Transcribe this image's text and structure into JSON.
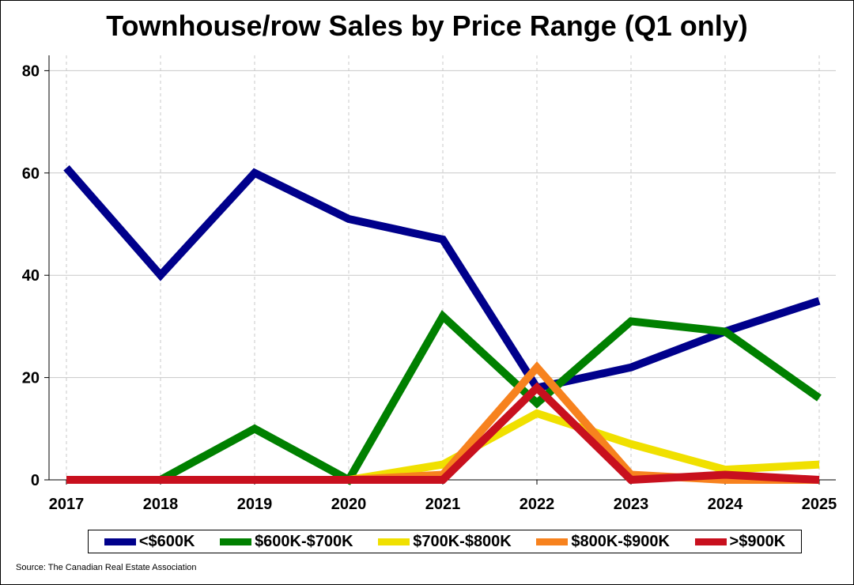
{
  "chart_data": {
    "type": "line",
    "title": "Townhouse/row Sales by Price Range (Q1 only)",
    "xlabel": "",
    "ylabel": "",
    "x": [
      "2017",
      "2018",
      "2019",
      "2020",
      "2021",
      "2022",
      "2023",
      "2024",
      "2025"
    ],
    "ylim": [
      0,
      83
    ],
    "yticks": [
      "0",
      "20",
      "40",
      "60",
      "80"
    ],
    "grid": true,
    "legend_position": "bottom",
    "series": [
      {
        "name": "<$600K",
        "color": "#00008B",
        "values": [
          61,
          40,
          60,
          51,
          47,
          18,
          22,
          29,
          35
        ]
      },
      {
        "name": "$600K-$700K",
        "color": "#008000",
        "values": [
          0,
          0,
          10,
          0,
          32,
          15,
          31,
          29,
          16
        ]
      },
      {
        "name": "$700K-$800K",
        "color": "#F0E000",
        "values": [
          0,
          0,
          0,
          0,
          3,
          13,
          7,
          2,
          3
        ]
      },
      {
        "name": "$800K-$900K",
        "color": "#F7821E",
        "values": [
          0,
          0,
          0,
          0,
          1,
          22,
          1,
          0,
          0
        ]
      },
      {
        "name": ">$900K",
        "color": "#C8101E",
        "values": [
          0,
          0,
          0,
          0,
          0,
          18,
          0,
          1,
          0
        ]
      }
    ]
  },
  "source": "Source: The Canadian Real Estate Association"
}
